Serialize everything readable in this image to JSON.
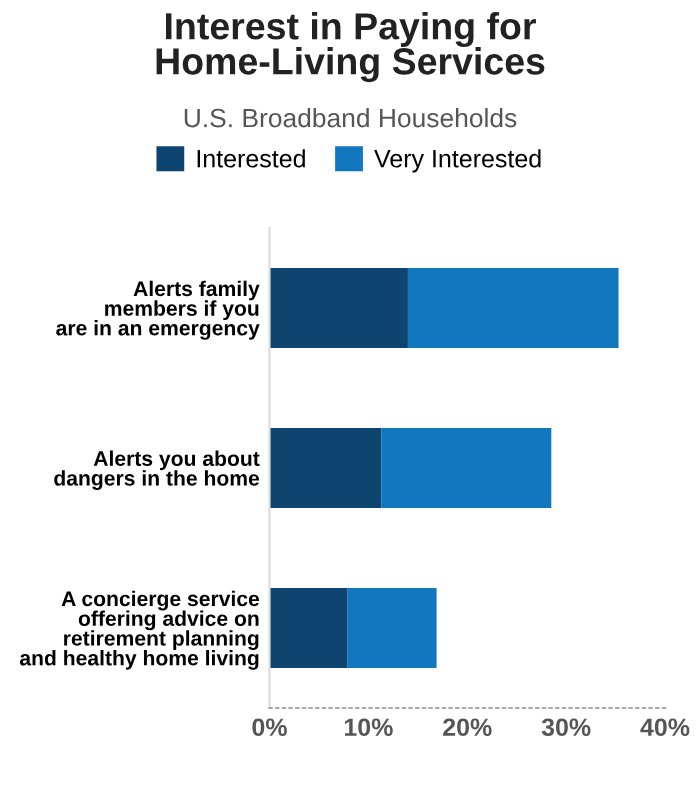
{
  "chart_data": {
    "type": "bar",
    "orientation": "horizontal",
    "stacked": true,
    "title": "Interest in Paying for\nHome-Living Services",
    "subtitle": "U.S. Broadband Households",
    "categories": [
      "Alerts family\nmembers if you\nare in an emergency",
      "Alerts you about\ndangers in the home",
      "A concierge service\noffering advice on\nretirement planning\nand healthy home living"
    ],
    "series": [
      {
        "name": "Interested",
        "color": "#0d4470",
        "values": [
          14,
          11.3,
          7.9
        ]
      },
      {
        "name": "Very Interested",
        "color": "#1177bf",
        "values": [
          21.3,
          17.2,
          9
        ]
      }
    ],
    "xlim": [
      0,
      40
    ],
    "xticks": [
      {
        "value": 0,
        "label": "0%"
      },
      {
        "value": 10,
        "label": "10%"
      },
      {
        "value": 20,
        "label": "20%"
      },
      {
        "value": 30,
        "label": "30%"
      },
      {
        "value": 40,
        "label": "40%"
      }
    ],
    "grid": false,
    "legend": "top"
  }
}
